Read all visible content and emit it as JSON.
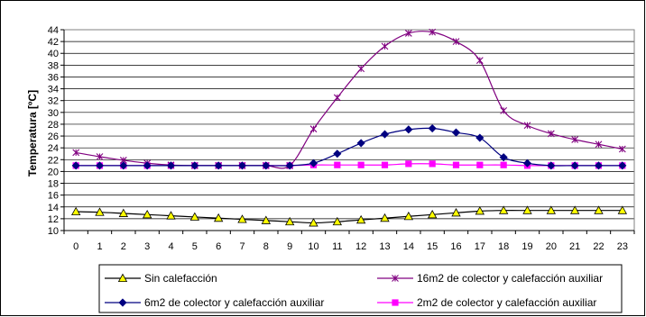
{
  "chart_data": {
    "type": "line",
    "title": "",
    "xlabel": "",
    "ylabel": "Temperatura [ºC]",
    "x": [
      0,
      1,
      2,
      3,
      4,
      5,
      6,
      7,
      8,
      9,
      10,
      11,
      12,
      13,
      14,
      15,
      16,
      17,
      18,
      19,
      20,
      21,
      22,
      23
    ],
    "ylim": [
      10,
      44
    ],
    "yticks": [
      10,
      12,
      14,
      16,
      18,
      20,
      22,
      24,
      26,
      28,
      30,
      32,
      34,
      36,
      38,
      40,
      42,
      44
    ],
    "grid": "horizontal",
    "legend": "bottom",
    "series": [
      {
        "name": "Sin calefacción",
        "color": "#000000",
        "marker_color": "#ffff00",
        "marker": "triangle",
        "values": [
          13.2,
          13.1,
          12.9,
          12.7,
          12.5,
          12.3,
          12.1,
          11.9,
          11.7,
          11.5,
          11.3,
          11.5,
          11.8,
          12.1,
          12.4,
          12.7,
          13.0,
          13.3,
          13.4,
          13.4,
          13.4,
          13.4,
          13.4,
          13.4
        ]
      },
      {
        "name": "16m2 de colector y calefacción auxiliar",
        "color": "#800080",
        "marker_color": "#800080",
        "marker": "star",
        "values": [
          23.2,
          22.5,
          21.9,
          21.4,
          21.1,
          21.0,
          21.0,
          21.0,
          21.0,
          21.0,
          27.2,
          32.5,
          37.4,
          41.2,
          43.4,
          43.6,
          42.0,
          38.8,
          30.3,
          27.8,
          26.4,
          25.4,
          24.6,
          23.8
        ]
      },
      {
        "name": "6m2 de colector y calefacción auxiliar",
        "color": "#000080",
        "marker_color": "#000080",
        "marker": "diamond",
        "values": [
          21.0,
          21.0,
          21.0,
          21.0,
          21.0,
          21.0,
          21.0,
          21.0,
          21.0,
          21.0,
          21.4,
          23.0,
          24.8,
          26.3,
          27.1,
          27.3,
          26.6,
          25.7,
          22.4,
          21.4,
          21.0,
          21.0,
          21.0,
          21.0
        ]
      },
      {
        "name": "2m2 de colector y calefacción auxiliar",
        "color": "#ff00ff",
        "marker_color": "#ff00ff",
        "marker": "square",
        "values": [
          21.0,
          21.0,
          21.0,
          21.0,
          21.0,
          21.0,
          21.0,
          21.0,
          21.0,
          21.0,
          21.1,
          21.1,
          21.1,
          21.1,
          21.3,
          21.3,
          21.1,
          21.1,
          21.1,
          21.0,
          21.0,
          21.0,
          21.0,
          21.0
        ]
      }
    ]
  }
}
